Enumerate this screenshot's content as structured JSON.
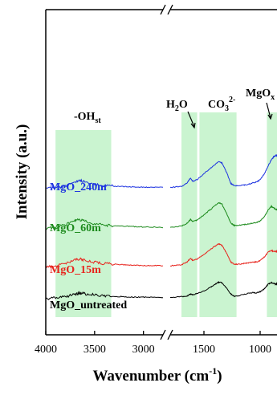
{
  "chart_data": {
    "type": "line",
    "title": "",
    "xlabel": "Wavenumber (cm",
    "xlabel_sup": "-1",
    "xlabel_close": ")",
    "ylabel": "Intensity (a.u.)",
    "axis_break": true,
    "segments": [
      {
        "xlim": [
          4000,
          2800
        ],
        "ticks": [
          4000,
          3500,
          3000
        ]
      },
      {
        "xlim": [
          1800,
          850
        ],
        "ticks": [
          1500,
          1000
        ]
      }
    ],
    "tick_labels": [
      "4000",
      "3500",
      "3000",
      "1500",
      "1000"
    ],
    "grid": false,
    "annotations": [
      {
        "text": "-OH",
        "sub": "st",
        "shaded_range": [
          3900,
          3330
        ]
      },
      {
        "text": "H",
        "sub": "2",
        "tail": "O",
        "shaded_range": [
          1700,
          1560
        ]
      },
      {
        "text": "CO",
        "sub": "3",
        "sup": "2-",
        "shaded_range": [
          1540,
          1210
        ]
      },
      {
        "text": "MgO",
        "sub": "x",
        "shaded_range": [
          940,
          850
        ]
      }
    ],
    "shade_color": "#b8f0c0",
    "series": [
      {
        "name": "MgO_untreated",
        "color": "#000000",
        "base": 0.0,
        "points": [
          [
            4000,
            0.0
          ],
          [
            3900,
            0.01
          ],
          [
            3800,
            0.025
          ],
          [
            3700,
            0.06
          ],
          [
            3650,
            0.075
          ],
          [
            3600,
            0.065
          ],
          [
            3500,
            0.05
          ],
          [
            3400,
            0.035
          ],
          [
            3300,
            0.03
          ],
          [
            3200,
            0.025
          ],
          [
            3100,
            0.02
          ],
          [
            3000,
            0.02
          ],
          [
            2900,
            0.015
          ],
          [
            2800,
            0.015
          ],
          [
            1800,
            0.015
          ],
          [
            1700,
            0.025
          ],
          [
            1650,
            0.035
          ],
          [
            1620,
            0.06
          ],
          [
            1600,
            0.05
          ],
          [
            1560,
            0.07
          ],
          [
            1500,
            0.1
          ],
          [
            1450,
            0.14
          ],
          [
            1400,
            0.19
          ],
          [
            1370,
            0.215
          ],
          [
            1340,
            0.21
          ],
          [
            1300,
            0.14
          ],
          [
            1260,
            0.06
          ],
          [
            1230,
            0.03
          ],
          [
            1200,
            0.035
          ],
          [
            1150,
            0.055
          ],
          [
            1100,
            0.07
          ],
          [
            1060,
            0.08
          ],
          [
            1030,
            0.075
          ],
          [
            1000,
            0.09
          ],
          [
            960,
            0.13
          ],
          [
            930,
            0.19
          ],
          [
            900,
            0.21
          ],
          [
            880,
            0.2
          ],
          [
            860,
            0.19
          ],
          [
            850,
            0.2
          ]
        ]
      },
      {
        "name": "MgO_15m",
        "color": "#e8231c",
        "base": 0.42,
        "points": [
          [
            4000,
            0.0
          ],
          [
            3900,
            0.01
          ],
          [
            3800,
            0.04
          ],
          [
            3700,
            0.085
          ],
          [
            3650,
            0.1
          ],
          [
            3600,
            0.08
          ],
          [
            3500,
            0.06
          ],
          [
            3400,
            0.04
          ],
          [
            3300,
            0.03
          ],
          [
            3200,
            0.025
          ],
          [
            3100,
            0.02
          ],
          [
            3000,
            0.015
          ],
          [
            2900,
            0.015
          ],
          [
            2800,
            0.01
          ],
          [
            1800,
            0.01
          ],
          [
            1700,
            0.025
          ],
          [
            1650,
            0.06
          ],
          [
            1620,
            0.11
          ],
          [
            1600,
            0.08
          ],
          [
            1560,
            0.1
          ],
          [
            1500,
            0.16
          ],
          [
            1450,
            0.22
          ],
          [
            1400,
            0.27
          ],
          [
            1370,
            0.3
          ],
          [
            1340,
            0.28
          ],
          [
            1300,
            0.18
          ],
          [
            1260,
            0.06
          ],
          [
            1230,
            0.03
          ],
          [
            1200,
            0.03
          ],
          [
            1150,
            0.04
          ],
          [
            1100,
            0.05
          ],
          [
            1060,
            0.06
          ],
          [
            1030,
            0.06
          ],
          [
            1000,
            0.08
          ],
          [
            960,
            0.13
          ],
          [
            930,
            0.19
          ],
          [
            900,
            0.21
          ],
          [
            880,
            0.2
          ],
          [
            860,
            0.2
          ],
          [
            850,
            0.2
          ]
        ]
      },
      {
        "name": "MgO_60m",
        "color": "#1c8a1c",
        "base": 0.92,
        "points": [
          [
            4000,
            0.0
          ],
          [
            3900,
            0.01
          ],
          [
            3800,
            0.05
          ],
          [
            3700,
            0.1
          ],
          [
            3650,
            0.115
          ],
          [
            3600,
            0.095
          ],
          [
            3500,
            0.065
          ],
          [
            3400,
            0.045
          ],
          [
            3300,
            0.035
          ],
          [
            3200,
            0.03
          ],
          [
            3100,
            0.025
          ],
          [
            3000,
            0.02
          ],
          [
            2900,
            0.02
          ],
          [
            2800,
            0.015
          ],
          [
            1800,
            0.015
          ],
          [
            1700,
            0.03
          ],
          [
            1650,
            0.07
          ],
          [
            1620,
            0.12
          ],
          [
            1600,
            0.09
          ],
          [
            1560,
            0.11
          ],
          [
            1500,
            0.18
          ],
          [
            1450,
            0.24
          ],
          [
            1400,
            0.3
          ],
          [
            1370,
            0.34
          ],
          [
            1340,
            0.32
          ],
          [
            1300,
            0.2
          ],
          [
            1260,
            0.07
          ],
          [
            1230,
            0.04
          ],
          [
            1200,
            0.04
          ],
          [
            1150,
            0.05
          ],
          [
            1100,
            0.06
          ],
          [
            1060,
            0.07
          ],
          [
            1030,
            0.08
          ],
          [
            1000,
            0.1
          ],
          [
            960,
            0.16
          ],
          [
            930,
            0.24
          ],
          [
            900,
            0.29
          ],
          [
            880,
            0.27
          ],
          [
            860,
            0.25
          ],
          [
            850,
            0.25
          ]
        ]
      },
      {
        "name": "MgO_240m",
        "color": "#1c32e0",
        "base": 1.44,
        "points": [
          [
            4000,
            0.0
          ],
          [
            3900,
            0.01
          ],
          [
            3800,
            0.04
          ],
          [
            3700,
            0.09
          ],
          [
            3650,
            0.11
          ],
          [
            3600,
            0.09
          ],
          [
            3500,
            0.06
          ],
          [
            3400,
            0.04
          ],
          [
            3300,
            0.035
          ],
          [
            3200,
            0.03
          ],
          [
            3100,
            0.025
          ],
          [
            3000,
            0.02
          ],
          [
            2900,
            0.02
          ],
          [
            2800,
            0.02
          ],
          [
            1800,
            0.02
          ],
          [
            1700,
            0.03
          ],
          [
            1650,
            0.08
          ],
          [
            1620,
            0.14
          ],
          [
            1600,
            0.1
          ],
          [
            1560,
            0.12
          ],
          [
            1500,
            0.2
          ],
          [
            1450,
            0.26
          ],
          [
            1400,
            0.32
          ],
          [
            1370,
            0.36
          ],
          [
            1340,
            0.34
          ],
          [
            1300,
            0.22
          ],
          [
            1260,
            0.07
          ],
          [
            1230,
            0.04
          ],
          [
            1200,
            0.04
          ],
          [
            1150,
            0.05
          ],
          [
            1100,
            0.06
          ],
          [
            1060,
            0.08
          ],
          [
            1030,
            0.09
          ],
          [
            1000,
            0.12
          ],
          [
            960,
            0.2
          ],
          [
            930,
            0.3
          ],
          [
            900,
            0.38
          ],
          [
            880,
            0.42
          ],
          [
            860,
            0.44
          ],
          [
            850,
            0.44
          ]
        ]
      }
    ]
  }
}
